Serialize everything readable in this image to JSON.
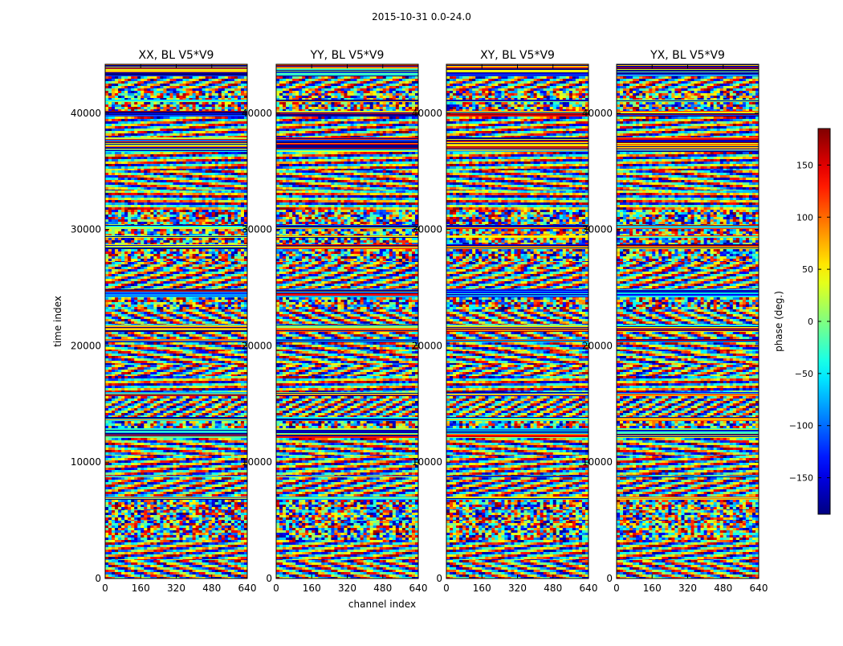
{
  "chart_data": {
    "type": "heatmap",
    "suptitle": "2015-10-31 0.0-24.0",
    "xlabel": "channel index",
    "ylabel": "time index",
    "xlim": [
      0,
      640
    ],
    "ylim": [
      0,
      44200
    ],
    "x_ticks": [
      0,
      160,
      320,
      480,
      640
    ],
    "y_ticks": [
      0,
      10000,
      20000,
      30000,
      40000
    ],
    "colormap": "jet",
    "colorbar": {
      "label": "phase (deg.)",
      "range": [
        -185,
        185
      ],
      "ticks": [
        -150,
        -100,
        -50,
        0,
        50,
        100,
        150
      ],
      "tick_labels": [
        "−150",
        "−100",
        "−50",
        "0",
        "50",
        "100",
        "150"
      ]
    },
    "panels": [
      {
        "title": "XX, BL V5*V9",
        "seed": 11
      },
      {
        "title": "YY, BL V5*V9",
        "seed": 23
      },
      {
        "title": "XY, BL V5*V9",
        "seed": 37
      },
      {
        "title": "YX, BL V5*V9",
        "seed": 53
      }
    ]
  }
}
